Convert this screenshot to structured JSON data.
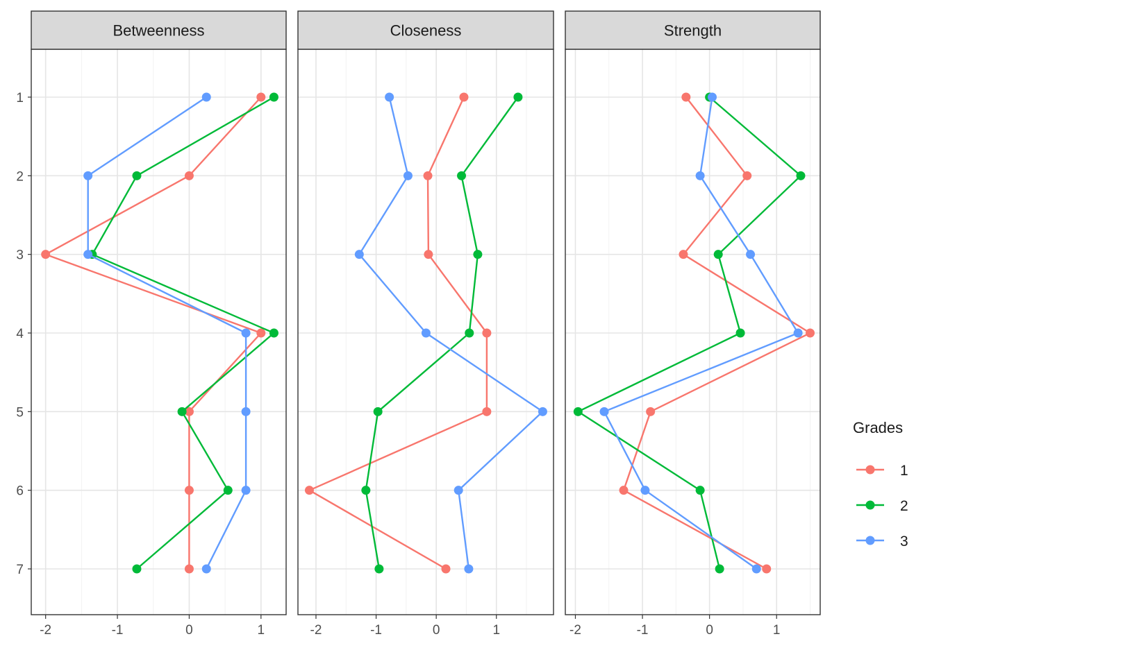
{
  "chart_data": {
    "type": "line",
    "orientation": "horizontal-values",
    "y_categories": [
      "1",
      "2",
      "3",
      "4",
      "5",
      "6",
      "7"
    ],
    "legend": {
      "title": "Grades",
      "placement": "right",
      "entries": [
        {
          "label": "1",
          "color": "#F8766D"
        },
        {
          "label": "2",
          "color": "#00BA38"
        },
        {
          "label": "3",
          "color": "#619CFF"
        }
      ]
    },
    "panels": [
      {
        "title": "Betweenness",
        "xlim": [
          -2.2,
          1.35
        ],
        "xticks": [
          -2,
          -1,
          0,
          1
        ],
        "series": [
          {
            "name": "1",
            "values": [
              1.0,
              0.0,
              -2.0,
              1.0,
              0.0,
              0.0,
              0.0
            ]
          },
          {
            "name": "2",
            "values": [
              1.18,
              -0.73,
              -1.35,
              1.18,
              -0.1,
              0.54,
              -0.73
            ]
          },
          {
            "name": "3",
            "values": [
              0.24,
              -1.41,
              -1.41,
              0.79,
              0.79,
              0.79,
              0.24
            ]
          }
        ]
      },
      {
        "title": "Closeness",
        "xlim": [
          -2.3,
          1.95
        ],
        "xticks": [
          -2,
          -1,
          0,
          1
        ],
        "series": [
          {
            "name": "1",
            "values": [
              0.46,
              -0.14,
              -0.13,
              0.84,
              0.84,
              -2.11,
              0.16
            ]
          },
          {
            "name": "2",
            "values": [
              1.36,
              0.42,
              0.69,
              0.55,
              -0.97,
              -1.17,
              -0.95
            ]
          },
          {
            "name": "3",
            "values": [
              -0.78,
              -0.47,
              -1.28,
              -0.17,
              1.77,
              0.37,
              0.54
            ]
          }
        ]
      },
      {
        "title": "Strength",
        "xlim": [
          -2.15,
          1.65
        ],
        "xticks": [
          -2,
          -1,
          0,
          1
        ],
        "series": [
          {
            "name": "1",
            "values": [
              -0.35,
              0.56,
              -0.39,
              1.5,
              -0.88,
              -1.28,
              0.85
            ]
          },
          {
            "name": "2",
            "values": [
              0.0,
              1.36,
              0.13,
              0.46,
              -1.96,
              -0.14,
              0.15
            ]
          },
          {
            "name": "3",
            "values": [
              0.04,
              -0.14,
              0.61,
              1.32,
              -1.57,
              -0.96,
              0.7
            ]
          }
        ]
      }
    ]
  }
}
